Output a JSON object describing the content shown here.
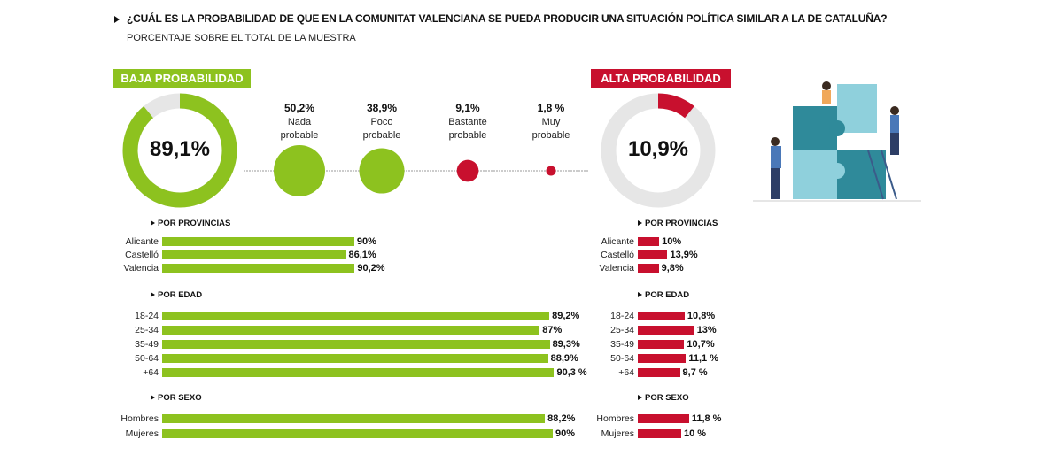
{
  "title": "¿CUÁL ES LA PROBABILIDAD DE QUE EN LA COMUNITAT VALENCIANA SE PUEDA PRODUCIR UNA SITUACIÓN POLÍTICA SIMILAR A LA DE CATALUÑA?",
  "subtitle": "PORCENTAJE SOBRE EL TOTAL DE LA MUESTRA",
  "colors": {
    "green": "#8dc21f",
    "red": "#c8102e",
    "grey": "#e6e6e6"
  },
  "chart_data": [
    {
      "type": "pie",
      "title": "BAJA PROBABILIDAD",
      "value": 89.1,
      "label": "89,1%"
    },
    {
      "type": "scatter",
      "categories": [
        "Nada probable",
        "Poco probable",
        "Bastante probable",
        "Muy probable"
      ],
      "lines": [
        [
          "Nada",
          "probable"
        ],
        [
          "Poco",
          "probable"
        ],
        [
          "Bastante",
          "probable"
        ],
        [
          "Muy",
          "probable"
        ]
      ],
      "values": [
        50.2,
        38.9,
        9.1,
        1.8
      ],
      "labels": [
        "50,2%",
        "38,9%",
        "9,1%",
        "1,8 %"
      ],
      "colors": [
        "green",
        "green",
        "red",
        "red"
      ]
    },
    {
      "type": "pie",
      "title": "ALTA PROBABILIDAD",
      "value": 10.9,
      "label": "10,9%"
    },
    {
      "type": "bar",
      "side": "baja",
      "sections": [
        {
          "title": "POR PROVINCIAS",
          "categories": [
            "Alicante",
            "Castelló",
            "Valencia"
          ],
          "values": [
            90,
            86.1,
            90.2
          ],
          "labels": [
            "90%",
            "86,1%",
            "90,2%"
          ]
        },
        {
          "title": "POR EDAD",
          "categories": [
            "18-24",
            "25-34",
            "35-49",
            "50-64",
            "+64"
          ],
          "values": [
            89.2,
            87,
            89.3,
            88.9,
            90.3
          ],
          "labels": [
            "89,2%",
            "87%",
            "89,3%",
            "88,9%",
            "90,3 %"
          ]
        },
        {
          "title": "POR SEXO",
          "categories": [
            "Hombres",
            "Mujeres"
          ],
          "values": [
            88.2,
            90
          ],
          "labels": [
            "88,2%",
            "90%"
          ]
        }
      ]
    },
    {
      "type": "bar",
      "side": "alta",
      "sections": [
        {
          "title": "POR PROVINCIAS",
          "categories": [
            "Alicante",
            "Castelló",
            "Valencia"
          ],
          "values": [
            10,
            13.9,
            9.8
          ],
          "labels": [
            "10%",
            "13,9%",
            "9,8%"
          ]
        },
        {
          "title": "POR EDAD",
          "categories": [
            "18-24",
            "25-34",
            "35-49",
            "50-64",
            "+64"
          ],
          "values": [
            10.8,
            13,
            10.7,
            11.1,
            9.7
          ],
          "labels": [
            "10,8%",
            "13%",
            "10,7%",
            "11,1 %",
            "9,7 %"
          ]
        },
        {
          "title": "POR SEXO",
          "categories": [
            "Hombres",
            "Mujeres"
          ],
          "values": [
            11.8,
            10
          ],
          "labels": [
            "11,8 %",
            "10 %"
          ]
        }
      ]
    }
  ]
}
